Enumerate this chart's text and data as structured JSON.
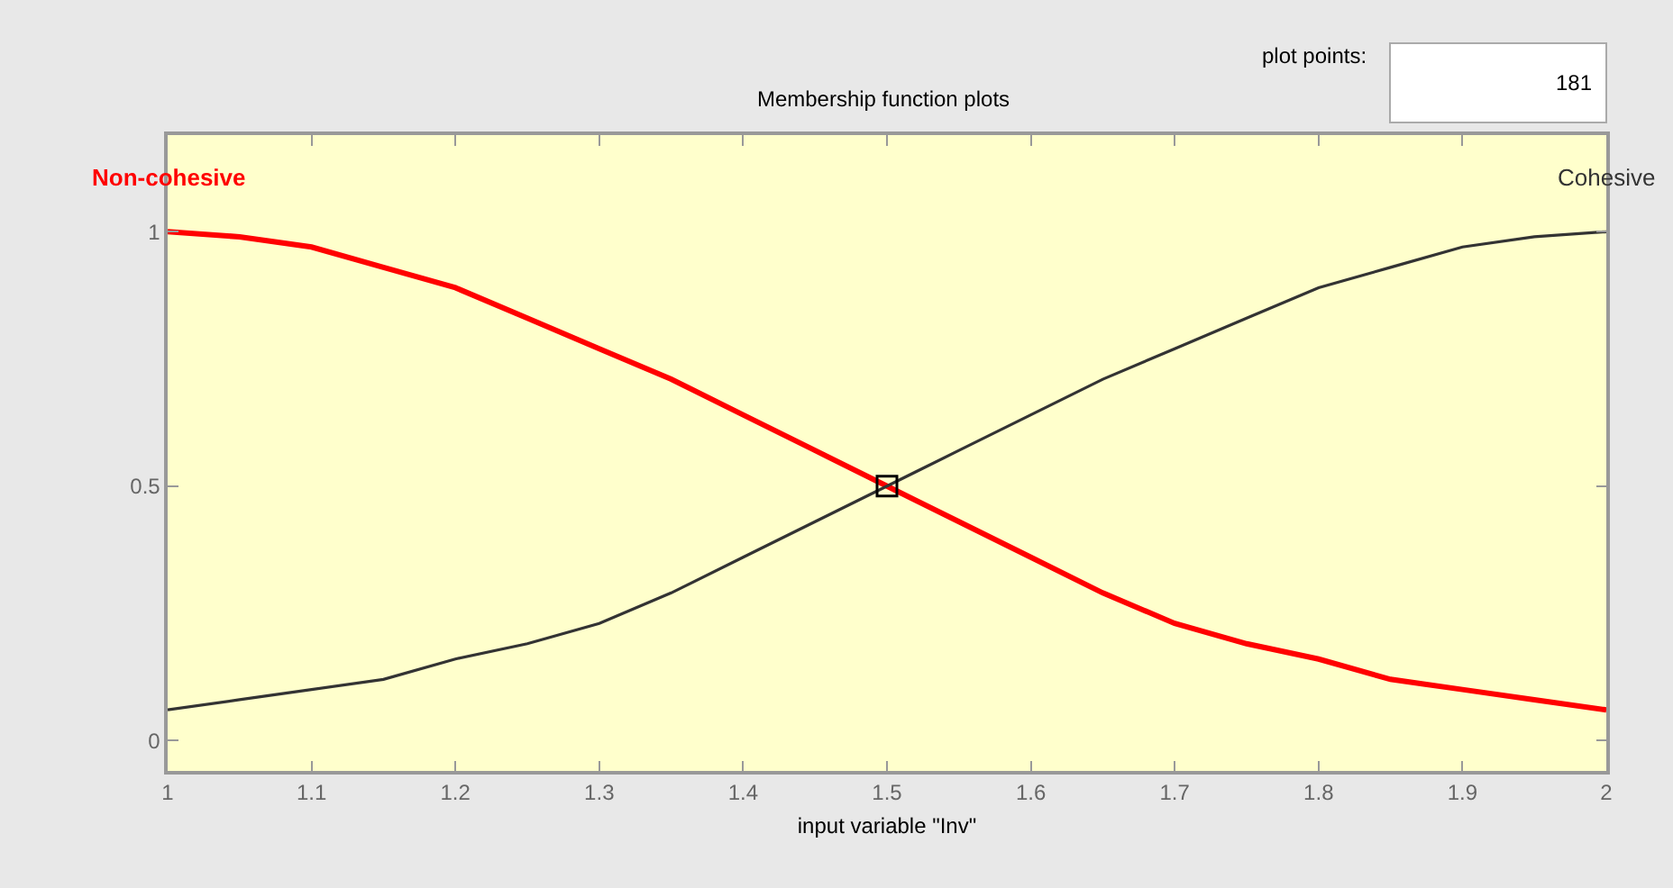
{
  "chart_data": {
    "type": "line",
    "title": "Membership function plots",
    "xlabel": "input variable \"Inv\"",
    "x": [
      1.0,
      1.05,
      1.1,
      1.15,
      1.2,
      1.25,
      1.3,
      1.35,
      1.4,
      1.45,
      1.5,
      1.55,
      1.6,
      1.65,
      1.7,
      1.75,
      1.8,
      1.85,
      1.9,
      1.95,
      2.0
    ],
    "series": [
      {
        "name": "Non-cohesive",
        "color": "#ff0000",
        "values": [
          1.0,
          0.99,
          0.97,
          0.93,
          0.89,
          0.83,
          0.77,
          0.71,
          0.64,
          0.57,
          0.5,
          0.43,
          0.36,
          0.29,
          0.23,
          0.19,
          0.16,
          0.12,
          0.1,
          0.08,
          0.06
        ]
      },
      {
        "name": "Cohesive",
        "color": "#333333",
        "values": [
          0.06,
          0.08,
          0.1,
          0.12,
          0.16,
          0.19,
          0.23,
          0.29,
          0.36,
          0.43,
          0.5,
          0.57,
          0.64,
          0.71,
          0.77,
          0.83,
          0.89,
          0.93,
          0.97,
          0.99,
          1.0
        ]
      },
      {
        "type": "scatter",
        "marker": "square",
        "color": "#000000",
        "x": [
          1.5
        ],
        "values": [
          0.5
        ]
      }
    ],
    "xlim": [
      1,
      2
    ],
    "xticks": [
      1,
      1.1,
      1.2,
      1.3,
      1.4,
      1.5,
      1.6,
      1.7,
      1.8,
      1.9,
      2
    ],
    "ylim": [
      -0.06,
      1.19
    ],
    "yticks": [
      0,
      0.5,
      1
    ],
    "grid": false,
    "legend": false,
    "marker": "none",
    "line_style": "solid",
    "annotations": [
      "plot points:",
      "181"
    ]
  }
}
